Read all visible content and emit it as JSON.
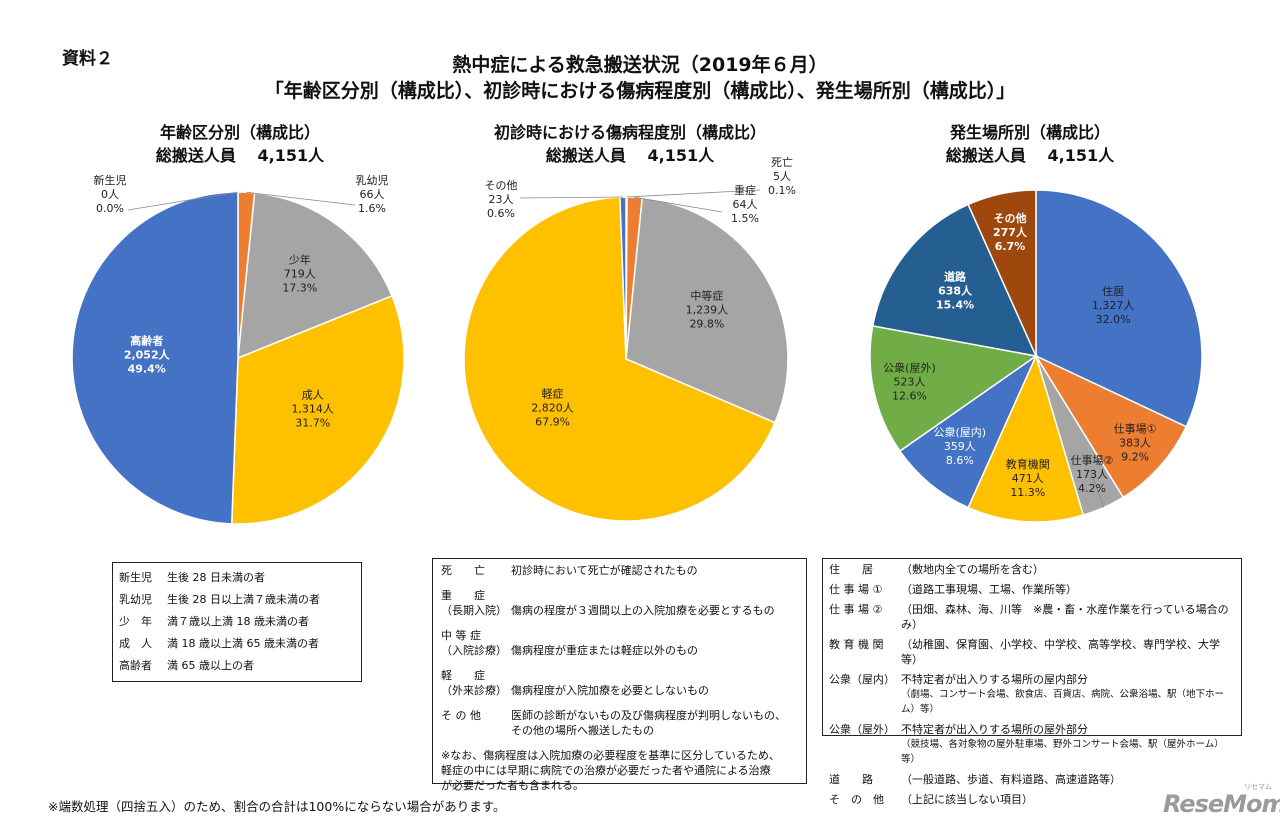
{
  "doc_label": "資料２",
  "title_line1": "熱中症による救急搬送状況（2019年６月）",
  "title_line2": "「年齢区分別（構成比）、初診時における傷病程度別（構成比）、発生場所別（構成比）」",
  "colors": {
    "blue": "#4472C4",
    "orange": "#ED7D31",
    "gray": "#A5A5A5",
    "yellow": "#FFC000",
    "green": "#70AD47",
    "navy": "#255E91",
    "brown": "#9E480E",
    "lightblue": "#5B9BD5"
  },
  "chart_data": [
    {
      "type": "pie",
      "title": "年齢区分別（構成比）",
      "subtitle": "総搬送人員　 4,151人",
      "slices": [
        {
          "name": "新生児",
          "count": "0人",
          "pct": "0.0%",
          "value": 0.0,
          "color": "#A5A5A5"
        },
        {
          "name": "乳幼児",
          "count": "66人",
          "pct": "1.6%",
          "value": 1.6,
          "color": "#ED7D31"
        },
        {
          "name": "少年",
          "count": "719人",
          "pct": "17.3%",
          "value": 17.3,
          "color": "#A5A5A5"
        },
        {
          "name": "成人",
          "count": "1,314人",
          "pct": "31.7%",
          "value": 31.7,
          "color": "#FFC000"
        },
        {
          "name": "高齢者",
          "count": "2,052人",
          "pct": "49.4%",
          "value": 49.4,
          "color": "#4472C4"
        }
      ]
    },
    {
      "type": "pie",
      "title": "初診時における傷病程度別（構成比）",
      "subtitle": "総搬送人員　 4,151人",
      "slices": [
        {
          "name": "死亡",
          "count": "5人",
          "pct": "0.1%",
          "value": 0.1,
          "color": "#5B9BD5"
        },
        {
          "name": "重症",
          "count": "64人",
          "pct": "1.5%",
          "value": 1.5,
          "color": "#ED7D31"
        },
        {
          "name": "中等症",
          "count": "1,239人",
          "pct": "29.8%",
          "value": 29.8,
          "color": "#A5A5A5"
        },
        {
          "name": "軽症",
          "count": "2,820人",
          "pct": "67.9%",
          "value": 67.9,
          "color": "#FFC000"
        },
        {
          "name": "その他",
          "count": "23人",
          "pct": "0.6%",
          "value": 0.6,
          "color": "#4472C4"
        }
      ]
    },
    {
      "type": "pie",
      "title": "発生場所別（構成比）",
      "subtitle": "総搬送人員　 4,151人",
      "slices": [
        {
          "name": "住居",
          "count": "1,327人",
          "pct": "32.0%",
          "value": 32.0,
          "color": "#4472C4"
        },
        {
          "name": "仕事場①",
          "count": "383人",
          "pct": "9.2%",
          "value": 9.2,
          "color": "#ED7D31"
        },
        {
          "name": "仕事場②",
          "count": "173人",
          "pct": "4.2%",
          "value": 4.2,
          "color": "#A5A5A5"
        },
        {
          "name": "教育機関",
          "count": "471人",
          "pct": "11.3%",
          "value": 11.3,
          "color": "#FFC000"
        },
        {
          "name": "公衆(屋内)",
          "count": "359人",
          "pct": "8.6%",
          "value": 8.6,
          "color": "#4472C4"
        },
        {
          "name": "公衆(屋外)",
          "count": "523人",
          "pct": "12.6%",
          "value": 12.6,
          "color": "#70AD47"
        },
        {
          "name": "道路",
          "count": "638人",
          "pct": "15.4%",
          "value": 15.4,
          "color": "#255E91"
        },
        {
          "name": "その他",
          "count": "277人",
          "pct": "6.7%",
          "value": 6.7,
          "color": "#9E480E"
        }
      ]
    }
  ],
  "legend_age": [
    {
      "term": "新生児",
      "desc": "生後 28 日未満の者"
    },
    {
      "term": "乳幼児",
      "desc": "生後 28 日以上満７歳未満の者"
    },
    {
      "term": "少　年",
      "desc": "満７歳以上満 18 歳未満の者"
    },
    {
      "term": "成　人",
      "desc": "満 18 歳以上満 65 歳未満の者"
    },
    {
      "term": "高齢者",
      "desc": "満 65 歳以上の者"
    }
  ],
  "legend_severity": [
    {
      "term": "死　　亡",
      "term2": "",
      "desc": "初診時において死亡が確認されたもの",
      "desc2": ""
    },
    {
      "term": "重　　症",
      "term2": "（長期入院）",
      "desc": "傷病の程度が３週間以上の入院加療を必要とするもの",
      "desc2": ""
    },
    {
      "term": "中 等 症",
      "term2": "（入院診療）",
      "desc": "傷病程度が重症または軽症以外のもの",
      "desc2": ""
    },
    {
      "term": "軽　　症",
      "term2": "（外来診療）",
      "desc": "傷病程度が入院加療を必要としないもの",
      "desc2": ""
    },
    {
      "term": "そ の 他",
      "term2": "",
      "desc": "医師の診断がないもの及び傷病程度が判明しないもの、",
      "desc2": "その他の場所へ搬送したもの"
    }
  ],
  "legend_severity_note": [
    "※なお、傷病程度は入院加療の必要程度を基準に区分しているため、",
    "軽症の中には早期に病院での治療が必要だった者や通院による治療",
    "が必要だった者も含まれる。"
  ],
  "legend_place": [
    {
      "term": "住　　居",
      "desc": "（敷地内全ての場所を含む）",
      "desc2": ""
    },
    {
      "term": "仕 事 場 ①",
      "desc": "（道路工事現場、工場、作業所等）",
      "desc2": ""
    },
    {
      "term": "仕 事 場 ②",
      "desc": "（田畑、森林、海、川等　※農・畜・水産作業を行っている場合のみ）",
      "desc2": ""
    },
    {
      "term": "教 育 機 関",
      "desc": "（幼稚園、保育園、小学校、中学校、高等学校、専門学校、大学等）",
      "desc2": ""
    },
    {
      "term": "公衆（屋内）",
      "desc": "不特定者が出入りする場所の屋内部分",
      "desc2": "（劇場、コンサート会場、飲食店、百貨店、病院、公衆浴場、駅（地下ホーム）等）"
    },
    {
      "term": "公衆（屋外）",
      "desc": "不特定者が出入りする場所の屋外部分",
      "desc2": "（競技場、各対象物の屋外駐車場、野外コンサート会場、駅（屋外ホーム）等）"
    },
    {
      "term": "道　　路",
      "desc": "（一般道路、歩道、有料道路、高速道路等）",
      "desc2": ""
    },
    {
      "term": "そ　の　他",
      "desc": "（上記に該当しない項目）",
      "desc2": ""
    }
  ],
  "footnote": "※端数処理（四捨五入）のため、割合の合計は100%にならない場合があります。",
  "logo": "ReseMom",
  "logo_sub": "リセマム"
}
